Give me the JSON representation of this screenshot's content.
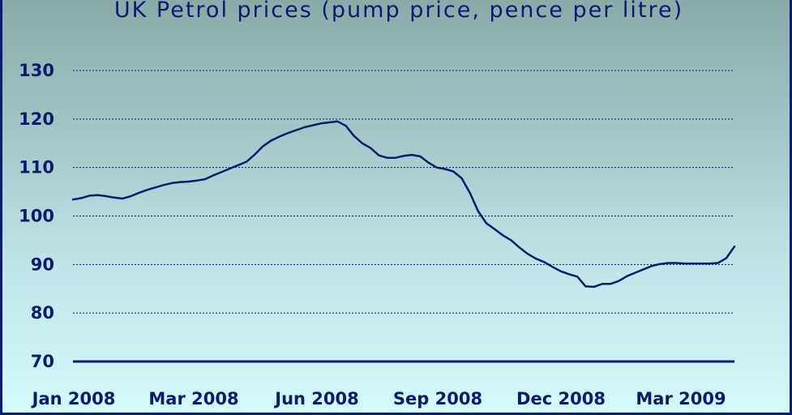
{
  "chart_data": {
    "type": "line",
    "title": "UK Petrol prices (pump price, pence per litre)",
    "xlabel": "",
    "ylabel": "",
    "ylim": [
      70,
      130
    ],
    "yticks": [
      70,
      80,
      90,
      100,
      110,
      120,
      130
    ],
    "xtick_labels": [
      "Jan 2008",
      "Mar 2008",
      "Jun 2008",
      "Sep 2008",
      "Dec 2008",
      "Mar 2009"
    ],
    "grid": true,
    "colors": {
      "line": "#0a1a70",
      "grid": "#0a1a70",
      "text": "#0a1a70"
    },
    "series": [
      {
        "name": "Pump price",
        "values": [
          103.4,
          103.7,
          104.2,
          104.3,
          104.1,
          103.8,
          103.6,
          104.1,
          104.8,
          105.4,
          105.9,
          106.4,
          106.8,
          107.0,
          107.1,
          107.3,
          107.6,
          108.4,
          109.1,
          109.8,
          110.5,
          111.2,
          112.7,
          114.4,
          115.6,
          116.4,
          117.1,
          117.7,
          118.3,
          118.7,
          119.1,
          119.3,
          119.5,
          118.6,
          116.5,
          115.0,
          114.0,
          112.5,
          112.0,
          112.0,
          112.4,
          112.6,
          112.3,
          111.0,
          110.0,
          109.7,
          109.2,
          107.8,
          104.8,
          101.0,
          98.5,
          97.3,
          96.0,
          95.0,
          93.5,
          92.2,
          91.2,
          90.5,
          89.5,
          88.6,
          88.0,
          87.5,
          85.5,
          85.4,
          86.0,
          86.0,
          86.6,
          87.6,
          88.3,
          89.0,
          89.7,
          90.1,
          90.3,
          90.3,
          90.2,
          90.2,
          90.2,
          90.2,
          90.3,
          91.3,
          93.7
        ]
      }
    ]
  }
}
